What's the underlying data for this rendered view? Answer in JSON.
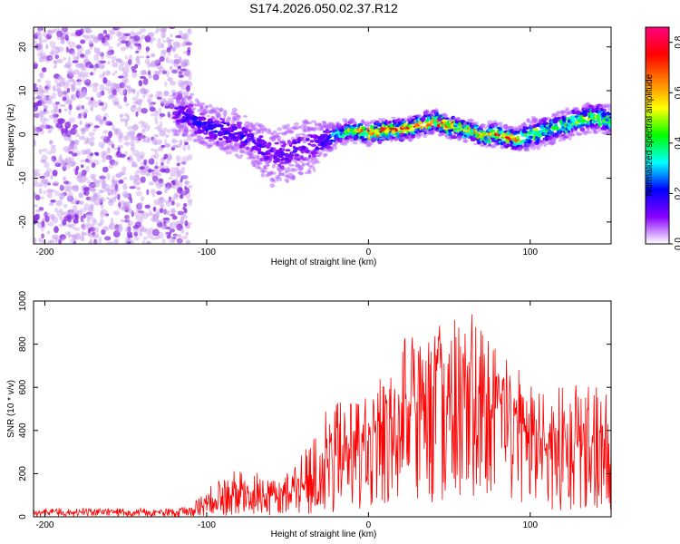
{
  "page_title": "S174.2026.050.02.37.R12",
  "chart_data": [
    {
      "type": "heatmap",
      "title": "S174.2026.050.02.37.R12",
      "xlabel": "Height of straight line (km)",
      "ylabel": "Frequency (Hz)",
      "xlim": [
        -207,
        150
      ],
      "ylim": [
        -25,
        24.5
      ],
      "xticks": [
        -200,
        -100,
        0,
        100
      ],
      "xtick_labels": [
        "-200",
        "-100",
        "0",
        "100"
      ],
      "yticks": [
        -20,
        -10,
        0,
        10,
        20
      ],
      "ytick_labels": [
        "-20",
        "-10",
        "0",
        "10",
        "20"
      ],
      "colorbar": {
        "label": "Normalized spectral amplitude",
        "range": [
          0,
          0.86
        ],
        "ticks": [
          0.0,
          0.2,
          0.4,
          0.6,
          0.8
        ],
        "tick_labels": [
          "0.0",
          "0.2",
          "0.4",
          "0.6",
          "0.8"
        ],
        "colormap": [
          "#ffffff",
          "#8a00ff",
          "#0000ff",
          "#00ffff",
          "#00ff00",
          "#ffff00",
          "#ff8000",
          "#ff0000",
          "#ff0080"
        ]
      },
      "noise_region": {
        "x_range": [
          -207,
          -110
        ],
        "freq_range": [
          -25,
          24.5
        ],
        "amplitude_range": [
          0.02,
          0.12
        ]
      },
      "signal_ridge": {
        "x": [
          -120,
          -110,
          -100,
          -90,
          -80,
          -70,
          -60,
          -50,
          -40,
          -30,
          -20,
          -10,
          0,
          10,
          20,
          30,
          40,
          50,
          60,
          70,
          80,
          90,
          100,
          110,
          120,
          130,
          140,
          150
        ],
        "freq": [
          5,
          4,
          2,
          1,
          0,
          -2,
          -5,
          -4,
          -3,
          -2,
          0,
          1,
          0,
          1,
          1,
          2,
          3,
          2,
          1,
          0,
          0,
          -1,
          0,
          1,
          2,
          3,
          4,
          3
        ],
        "amplitude": [
          0.15,
          0.2,
          0.2,
          0.2,
          0.18,
          0.18,
          0.15,
          0.15,
          0.15,
          0.18,
          0.35,
          0.55,
          0.7,
          0.75,
          0.75,
          0.7,
          0.7,
          0.7,
          0.65,
          0.65,
          0.7,
          0.75,
          0.55,
          0.45,
          0.45,
          0.5,
          0.5,
          0.45
        ],
        "spread_hz": [
          3,
          3,
          3,
          3,
          3,
          3,
          4,
          4,
          4,
          3,
          1.5,
          1.5,
          1.5,
          1.5,
          1.5,
          1.5,
          1.5,
          1.5,
          1.5,
          1.5,
          1.5,
          1.5,
          2,
          2,
          2,
          2,
          2,
          2
        ]
      }
    },
    {
      "type": "line",
      "title": "",
      "xlabel": "Height of straight line (km)",
      "ylabel": "SNR (10 * v/v)",
      "xlim": [
        -207,
        150
      ],
      "ylim": [
        0,
        1000
      ],
      "xticks": [
        -200,
        -100,
        0,
        100
      ],
      "xtick_labels": [
        "-200",
        "-100",
        "0",
        "100"
      ],
      "yticks": [
        0,
        200,
        400,
        600,
        800,
        1000
      ],
      "ytick_labels": [
        "0",
        "200",
        "400",
        "600",
        "800",
        "1000"
      ],
      "series": [
        {
          "name": "SNR",
          "color": "#ff0000",
          "envelope": {
            "x": [
              -207,
              -180,
              -150,
              -120,
              -110,
              -100,
              -90,
              -80,
              -70,
              -60,
              -50,
              -40,
              -30,
              -25,
              -20,
              -15,
              -10,
              -5,
              0,
              10,
              20,
              30,
              40,
              50,
              60,
              70,
              80,
              90,
              100,
              110,
              120,
              130,
              140,
              150
            ],
            "mean": [
              20,
              20,
              20,
              22,
              25,
              60,
              90,
              110,
              100,
              90,
              100,
              150,
              200,
              280,
              320,
              330,
              340,
              330,
              360,
              420,
              500,
              520,
              560,
              540,
              530,
              520,
              470,
              420,
              380,
              360,
              350,
              330,
              320,
              300
            ],
            "max": [
              40,
              40,
              40,
              40,
              50,
              130,
              200,
              230,
              210,
              180,
              210,
              300,
              420,
              520,
              550,
              560,
              560,
              540,
              600,
              700,
              900,
              830,
              930,
              880,
              1000,
              880,
              770,
              700,
              640,
              640,
              600,
              630,
              640,
              620
            ]
          }
        }
      ]
    }
  ]
}
